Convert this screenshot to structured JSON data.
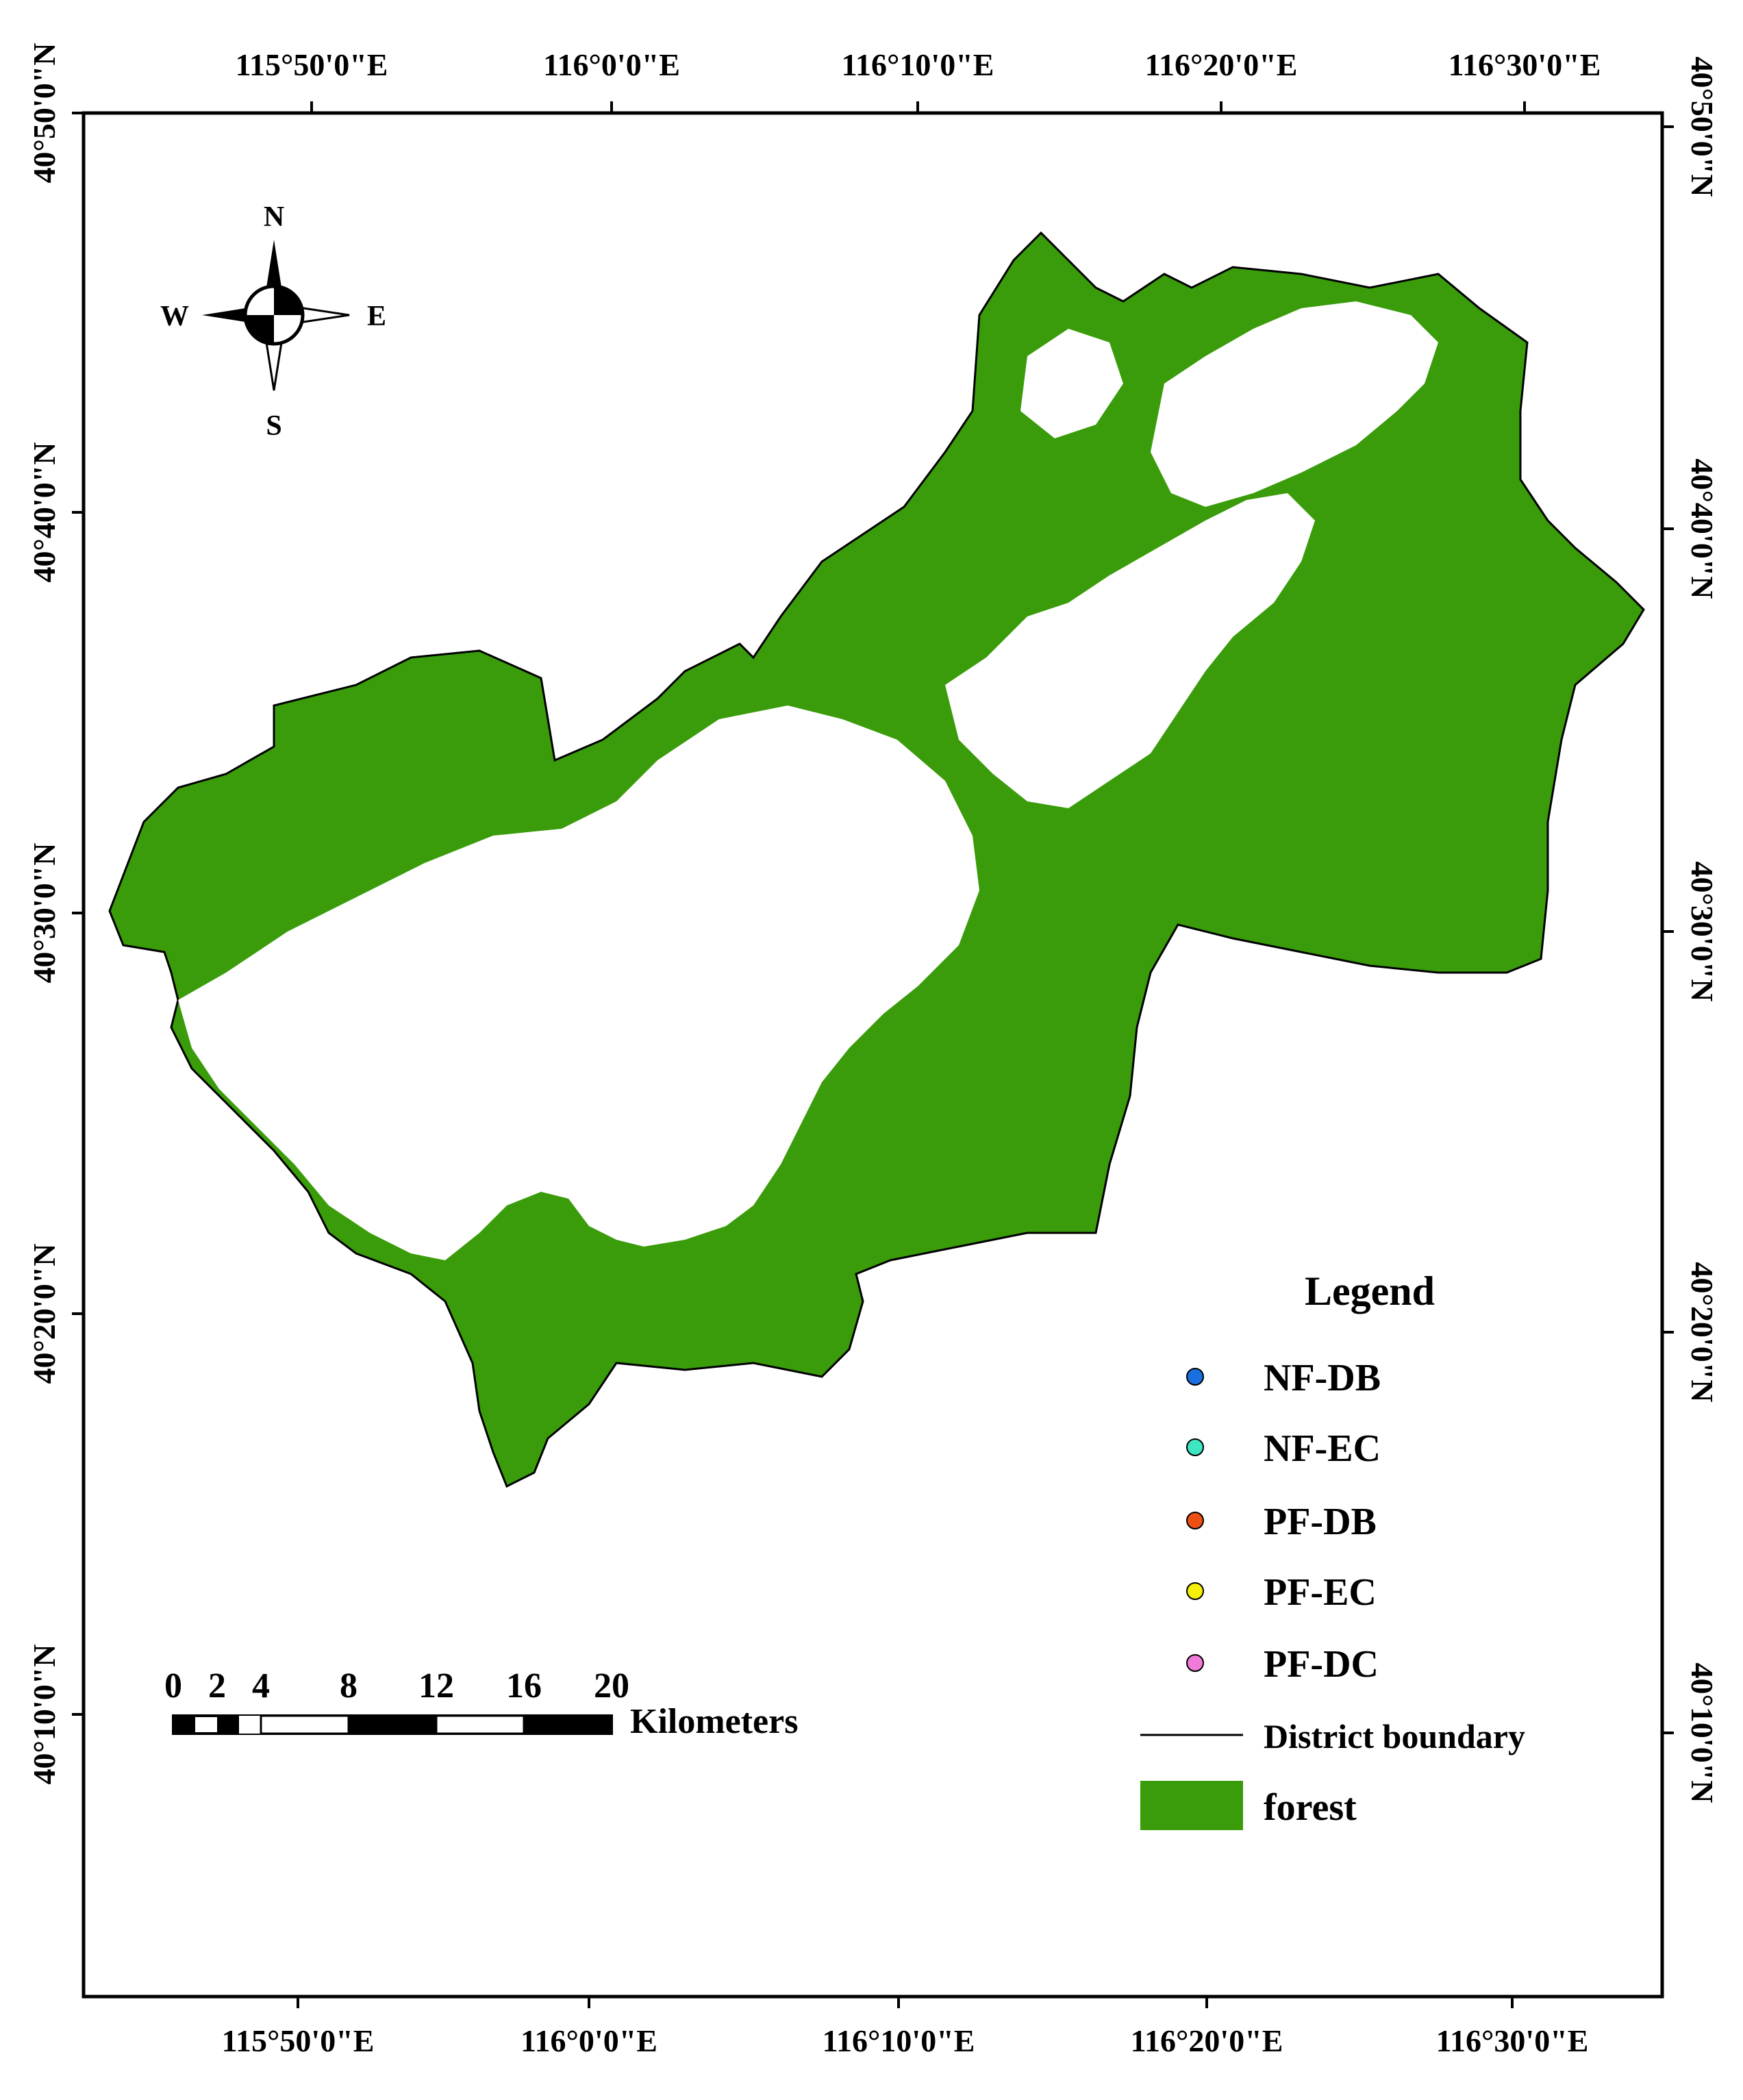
{
  "map": {
    "lon_ticks": [
      "115°50'0\"E",
      "116°0'0\"E",
      "116°10'0\"E",
      "116°20'0\"E",
      "116°30'0\"E"
    ],
    "lat_ticks": [
      "40°50'0\"N",
      "40°40'0\"N",
      "40°30'0\"N",
      "40°20'0\"N",
      "40°10'0\"N"
    ],
    "forest_color": "#3a9c0a",
    "boundary_color": "#000000"
  },
  "compass": {
    "n": "N",
    "s": "S",
    "e": "E",
    "w": "W"
  },
  "scale_bar": {
    "labels": [
      "0",
      "2",
      "4",
      "8",
      "12",
      "16",
      "20"
    ],
    "unit": "Kilometers"
  },
  "legend": {
    "title": "Legend",
    "items": [
      {
        "label": "NF-DB",
        "color": "#1a6fe0",
        "kind": "point"
      },
      {
        "label": "NF-EC",
        "color": "#3ee6c4",
        "kind": "point"
      },
      {
        "label": "PF-DB",
        "color": "#ee4f12",
        "kind": "point"
      },
      {
        "label": "PF-EC",
        "color": "#f5f00a",
        "kind": "point"
      },
      {
        "label": "PF-DC",
        "color": "#f27ad8",
        "kind": "point"
      },
      {
        "label": "District boundary",
        "color": "#000000",
        "kind": "line"
      },
      {
        "label": "forest",
        "color": "#3a9c0a",
        "kind": "fill"
      }
    ]
  }
}
